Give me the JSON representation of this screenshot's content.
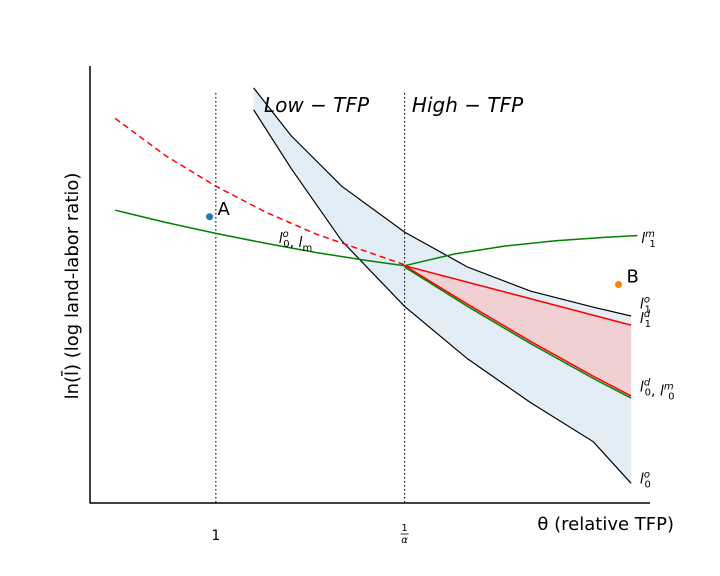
{
  "chart_data": {
    "type": "line",
    "title": "",
    "xlabel": "θ (relative TFP)",
    "ylabel": "ln(l̄) (log land-labor ratio)",
    "xlim": [
      0.0,
      4.45
    ],
    "ylim": [
      0.0,
      10.0
    ],
    "grid": false,
    "x_ticks": [
      {
        "x": 1.0,
        "label": "1"
      },
      {
        "x": 2.5,
        "label": "1/α"
      }
    ],
    "vlines": [
      1.0,
      2.5
    ],
    "regions": [
      {
        "label": "Low − TFP",
        "x": 1.8,
        "y": 8.95
      },
      {
        "label": "High − TFP",
        "x": 3.0,
        "y": 8.95
      }
    ],
    "series": [
      {
        "id": "upper-black",
        "color": "#000000",
        "style": "solid",
        "x": [
          1.3,
          1.6,
          2.0,
          2.5,
          3.0,
          3.5,
          4.0,
          4.3
        ],
        "y": [
          9.5,
          8.4,
          7.25,
          6.2,
          5.4,
          4.85,
          4.48,
          4.28
        ]
      },
      {
        "id": "lower-black",
        "color": "#000000",
        "style": "solid",
        "x": [
          1.3,
          1.6,
          2.0,
          2.5,
          3.0,
          3.5,
          4.0,
          4.3
        ],
        "y": [
          9.0,
          7.65,
          6.0,
          4.5,
          3.3,
          2.3,
          1.4,
          0.45
        ]
      },
      {
        "id": "red-dashed",
        "color": "#ff0000",
        "style": "dashed",
        "x": [
          0.2,
          0.6,
          1.0,
          1.4,
          1.8,
          2.2,
          2.5
        ],
        "y": [
          8.8,
          7.95,
          7.25,
          6.65,
          6.15,
          5.75,
          5.45
        ]
      },
      {
        "id": "green-left",
        "color": "#008000",
        "style": "solid",
        "x": [
          0.2,
          0.6,
          1.0,
          1.4,
          1.8,
          2.2,
          2.5
        ],
        "y": [
          6.7,
          6.42,
          6.17,
          5.94,
          5.73,
          5.55,
          5.43
        ]
      },
      {
        "id": "green-upper",
        "color": "#008000",
        "style": "solid",
        "x": [
          2.5,
          2.9,
          3.3,
          3.7,
          4.1,
          4.35
        ],
        "y": [
          5.43,
          5.7,
          5.88,
          6.0,
          6.08,
          6.12
        ]
      },
      {
        "id": "red-upper",
        "color": "#ff0000",
        "style": "solid",
        "x": [
          2.5,
          4.3
        ],
        "y": [
          5.43,
          4.07
        ]
      },
      {
        "id": "red-lower",
        "color": "#ff0000",
        "style": "solid",
        "x": [
          2.5,
          3.0,
          3.5,
          4.0,
          4.3
        ],
        "y": [
          5.43,
          4.55,
          3.7,
          2.9,
          2.45
        ]
      },
      {
        "id": "green-lower",
        "color": "#008000",
        "style": "solid",
        "x": [
          2.5,
          3.0,
          3.5,
          4.0,
          4.3
        ],
        "y": [
          5.4,
          4.5,
          3.65,
          2.85,
          2.4
        ]
      }
    ],
    "shaded": [
      {
        "color": "#dbe8f2",
        "between": [
          "upper-black",
          "lower-black"
        ]
      },
      {
        "color": "#f5c8cc",
        "between": [
          "red-upper",
          "red-lower"
        ]
      }
    ],
    "points": [
      {
        "label": "A",
        "x": 0.95,
        "y": 6.55,
        "color": "#1f77b4"
      },
      {
        "label": "B",
        "x": 4.2,
        "y": 5.0,
        "color": "#ff7f0e"
      }
    ],
    "curve_labels": [
      {
        "name": "lo0-lm",
        "base": "l",
        "sup": "o",
        "sub": "0",
        "base2": "l",
        "sub2": "m",
        "x": 1.5,
        "y": 5.95
      },
      {
        "name": "lm1",
        "base": "l",
        "sup": "m",
        "sub": "1",
        "x": 4.38,
        "y": 5.95
      },
      {
        "name": "lo1",
        "base": "l",
        "sup": "o",
        "sub": "1",
        "x": 4.37,
        "y": 4.45
      },
      {
        "name": "ld1",
        "base": "l",
        "sup": "d",
        "sub": "1",
        "x": 4.37,
        "y": 4.12
      },
      {
        "name": "ld0-lm0",
        "base": "l",
        "sup": "d",
        "sub": "0",
        "base2": "l",
        "sup2": "m",
        "sub2": "0",
        "x": 4.37,
        "y": 2.55
      },
      {
        "name": "lo0",
        "base": "l",
        "sup": "o",
        "sub": "0",
        "x": 4.37,
        "y": 0.45
      }
    ]
  }
}
